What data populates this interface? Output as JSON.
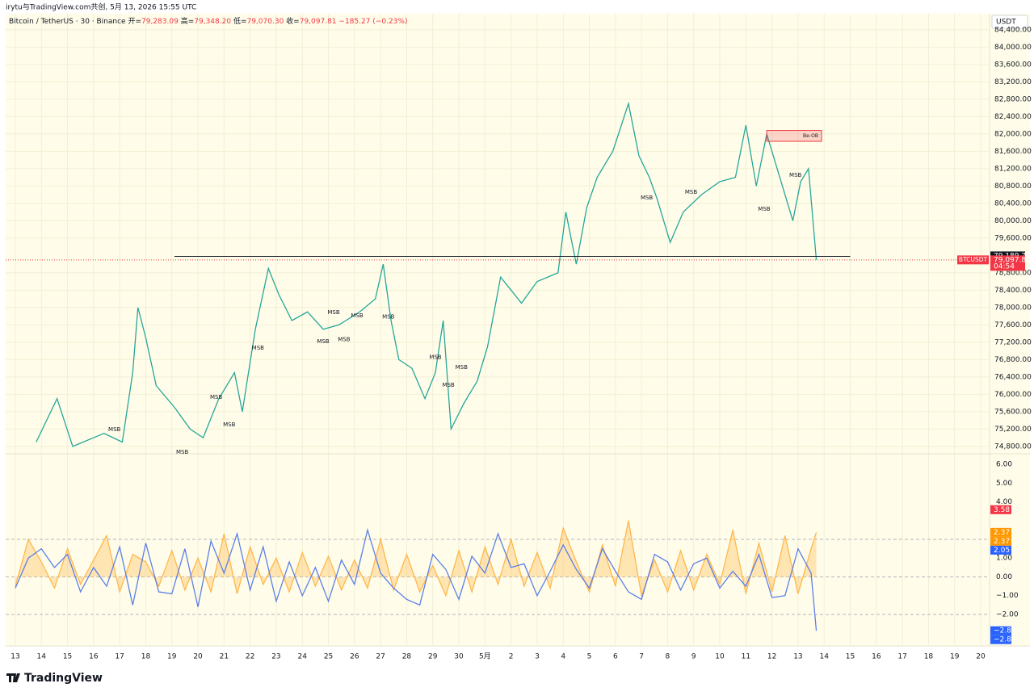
{
  "header": "irytu与TradingView.com共创, 5月 13, 2026 15:55 UTC",
  "legend": {
    "title": "Bitcoin / TetherUS · 30 · Binance",
    "ohlc": [
      {
        "key": "开=",
        "value": "79,283.09"
      },
      {
        "key": "高=",
        "value": "79,348.20"
      },
      {
        "key": "低=",
        "value": "79,070.30"
      },
      {
        "key": "收=",
        "value": "79,097.81"
      }
    ],
    "change": "−185.27 (−0.23%)"
  },
  "currency": "USDT",
  "footer": "TradingView",
  "chart_data": [
    {
      "type": "line",
      "color": "#26a69a",
      "x": [
        0.8,
        1.6,
        2.2,
        3.4,
        4.1,
        4.5,
        4.7,
        5.0,
        5.4,
        6.1,
        6.7,
        7.2,
        7.8,
        8.4,
        8.7,
        9.2,
        9.7,
        10.1,
        10.6,
        11.2,
        11.8,
        12.4,
        13.2,
        13.8,
        14.1,
        14.4,
        14.7,
        15.2,
        15.7,
        16.1,
        16.4,
        16.7,
        17.2,
        17.7,
        18.1,
        18.6,
        19.4,
        20.0,
        20.8,
        21.1,
        21.5,
        21.9,
        22.3,
        22.9,
        23.5,
        23.9,
        24.3,
        24.6,
        25.1,
        25.6,
        26.3,
        27.0,
        27.6,
        28.0,
        28.4,
        28.8,
        29.3,
        29.8,
        30.1,
        30.4,
        30.5,
        30.7
      ],
      "values": [
        74900,
        75900,
        74800,
        75100,
        74900,
        76500,
        78000,
        77300,
        76200,
        75700,
        75200,
        75000,
        75900,
        76500,
        75600,
        77500,
        78900,
        78300,
        77700,
        77900,
        77500,
        77600,
        77900,
        78200,
        79000,
        77700,
        76800,
        76600,
        75900,
        76500,
        77700,
        75200,
        75800,
        76300,
        77100,
        78700,
        78100,
        78600,
        78800,
        80200,
        79000,
        80300,
        81000,
        81600,
        82700,
        81500,
        81000,
        80500,
        79500,
        80200,
        80600,
        80900,
        81000,
        82200,
        80800,
        82000,
        81000,
        80000,
        80900,
        81200,
        80500,
        79100
      ],
      "xlim": [
        -0.37,
        37.34
      ],
      "xticks": [
        {
          "value": 0,
          "label": "13"
        },
        {
          "value": 1,
          "label": "14"
        },
        {
          "value": 2,
          "label": "15"
        },
        {
          "value": 3,
          "label": "16"
        },
        {
          "value": 4,
          "label": "17"
        },
        {
          "value": 5,
          "label": "18"
        },
        {
          "value": 6,
          "label": "19"
        },
        {
          "value": 7,
          "label": "20"
        },
        {
          "value": 8,
          "label": "21"
        },
        {
          "value": 9,
          "label": "22"
        },
        {
          "value": 10,
          "label": "23"
        },
        {
          "value": 11,
          "label": "24"
        },
        {
          "value": 12,
          "label": "25"
        },
        {
          "value": 13,
          "label": "26"
        },
        {
          "value": 14,
          "label": "27"
        },
        {
          "value": 15,
          "label": "28"
        },
        {
          "value": 16,
          "label": "29"
        },
        {
          "value": 17,
          "label": "30"
        },
        {
          "value": 18,
          "label": "5月"
        },
        {
          "value": 19,
          "label": "2"
        },
        {
          "value": 20,
          "label": "3"
        },
        {
          "value": 21,
          "label": "4"
        },
        {
          "value": 22,
          "label": "5"
        },
        {
          "value": 23,
          "label": "6"
        },
        {
          "value": 24,
          "label": "7"
        },
        {
          "value": 25,
          "label": "8"
        },
        {
          "value": 26,
          "label": "9"
        },
        {
          "value": 27,
          "label": "10"
        },
        {
          "value": 28,
          "label": "11"
        },
        {
          "value": 29,
          "label": "12"
        },
        {
          "value": 30,
          "label": "13"
        },
        {
          "value": 31,
          "label": "14"
        },
        {
          "value": 32,
          "label": "15"
        },
        {
          "value": 33,
          "label": "16"
        },
        {
          "value": 34,
          "label": "17"
        },
        {
          "value": 35,
          "label": "18"
        },
        {
          "value": 36,
          "label": "19"
        },
        {
          "value": 37,
          "label": "20"
        }
      ],
      "ylim": [
        74630,
        84770
      ],
      "yticks": [
        {
          "value": 74800,
          "label": "74,800.00"
        },
        {
          "value": 75200,
          "label": "75,200.00"
        },
        {
          "value": 75600,
          "label": "75,600.00"
        },
        {
          "value": 76000,
          "label": "76,000.00"
        },
        {
          "value": 76400,
          "label": "76,400.00"
        },
        {
          "value": 76800,
          "label": "76,800.00"
        },
        {
          "value": 77200,
          "label": "77,200.00"
        },
        {
          "value": 77600,
          "label": "77,600.00"
        },
        {
          "value": 78000,
          "label": "78,000.00"
        },
        {
          "value": 78400,
          "label": "78,400.00"
        },
        {
          "value": 78800,
          "label": "78,800.00"
        },
        {
          "value": 79600,
          "label": "79,600.00"
        },
        {
          "value": 80000,
          "label": "80,000.00"
        },
        {
          "value": 80400,
          "label": "80,400.00"
        },
        {
          "value": 80800,
          "label": "80,800.00"
        },
        {
          "value": 81200,
          "label": "81,200.00"
        },
        {
          "value": 81600,
          "label": "81,600.00"
        },
        {
          "value": 82000,
          "label": "82,000.00"
        },
        {
          "value": 82400,
          "label": "82,400.00"
        },
        {
          "value": 82800,
          "label": "82,800.00"
        },
        {
          "value": 83200,
          "label": "83,200.00"
        },
        {
          "value": 83600,
          "label": "83,600.00"
        },
        {
          "value": 84000,
          "label": "84,000.00"
        },
        {
          "value": 84400,
          "label": "84,400.00"
        }
      ],
      "grid": true,
      "level": {
        "value": 79180,
        "x": [
          6.1,
          32.0
        ],
        "color": "#131722"
      },
      "order_block": {
        "label": "Be-OB",
        "x": [
          28.8,
          30.9
        ],
        "y": [
          81830,
          82080
        ],
        "color": "#f23645"
      },
      "annotations": [
        {
          "text": "MSB",
          "x": 3.8,
          "y": 75190,
          "color": "#22ab94"
        },
        {
          "text": "MSB",
          "x": 6.4,
          "y": 74670,
          "color": "#f23645"
        },
        {
          "text": "MSB",
          "x": 7.7,
          "y": 75930,
          "color": "#22ab94"
        },
        {
          "text": "MSB",
          "x": 8.2,
          "y": 75300,
          "color": "#f23645"
        },
        {
          "text": "MSB",
          "x": 9.3,
          "y": 77070,
          "color": "#22ab94"
        },
        {
          "text": "MSB",
          "x": 11.8,
          "y": 77220,
          "color": "#f23645"
        },
        {
          "text": "MSB",
          "x": 12.2,
          "y": 77890,
          "color": "#22ab94"
        },
        {
          "text": "MSB",
          "x": 12.6,
          "y": 77260,
          "color": "#f23645"
        },
        {
          "text": "MSB",
          "x": 13.1,
          "y": 77810,
          "color": "#22ab94"
        },
        {
          "text": "MSB",
          "x": 14.3,
          "y": 77780,
          "color": "#f23645"
        },
        {
          "text": "MSB",
          "x": 16.1,
          "y": 76850,
          "color": "#22ab94"
        },
        {
          "text": "MSB",
          "x": 16.6,
          "y": 76210,
          "color": "#f23645"
        },
        {
          "text": "MSB",
          "x": 17.1,
          "y": 76620,
          "color": "#22ab94"
        },
        {
          "text": "MSB",
          "x": 24.2,
          "y": 80530,
          "color": "#f23645"
        },
        {
          "text": "MSB",
          "x": 25.9,
          "y": 80660,
          "color": "#22ab94"
        },
        {
          "text": "MSB",
          "x": 28.7,
          "y": 80270,
          "color": "#f23645"
        },
        {
          "text": "MSB",
          "x": 29.9,
          "y": 81050,
          "color": "#22ab94"
        }
      ],
      "price_tags": [
        {
          "label": "79,189.71",
          "value": 79189.71,
          "color": "#131722"
        },
        {
          "symbol": "BTCUSDT",
          "label": "79,097.81",
          "value": 79097.81,
          "countdown": "04:54",
          "color": "#f23645"
        }
      ]
    },
    {
      "type": "line",
      "x": [
        0,
        0.5,
        1,
        1.5,
        2,
        2.5,
        3,
        3.5,
        4,
        4.5,
        5,
        5.5,
        6,
        6.5,
        7,
        7.5,
        8,
        8.5,
        9,
        9.5,
        10,
        10.5,
        11,
        11.5,
        12,
        12.5,
        13,
        13.5,
        14,
        14.5,
        15,
        15.5,
        16,
        16.5,
        17,
        17.5,
        18,
        18.5,
        19,
        19.5,
        20,
        20.5,
        21,
        21.5,
        22,
        22.5,
        23,
        23.5,
        24,
        24.5,
        25,
        25.5,
        26,
        26.5,
        27,
        27.5,
        28,
        28.5,
        29,
        29.5,
        30,
        30.5,
        30.7
      ],
      "series": [
        {
          "color": "#ffb74d",
          "fill": true,
          "values": [
            -0.5,
            2.0,
            0.8,
            -0.6,
            1.5,
            -0.4,
            0.9,
            2.2,
            -0.8,
            1.2,
            0.8,
            -0.5,
            1.4,
            -0.7,
            1.0,
            -0.8,
            2.3,
            -0.9,
            1.6,
            -0.4,
            1.0,
            -0.8,
            1.3,
            -0.5,
            1.1,
            -0.7,
            0.9,
            -0.6,
            2.0,
            -0.7,
            1.2,
            -0.8,
            0.6,
            -1.0,
            1.4,
            -0.8,
            1.6,
            -0.4,
            2.0,
            -0.5,
            1.3,
            -0.6,
            2.6,
            0.8,
            -0.8,
            1.7,
            -0.5,
            3.0,
            -1.0,
            0.9,
            -0.8,
            1.4,
            -0.7,
            1.2,
            -0.4,
            2.5,
            -0.9,
            1.8,
            -0.8,
            2.2,
            -0.9,
            1.5,
            2.37
          ]
        },
        {
          "color": "#5b7fe8",
          "fill": false,
          "values": [
            -0.6,
            1.0,
            1.5,
            0.5,
            1.2,
            -0.8,
            0.5,
            -0.5,
            1.6,
            -1.5,
            1.8,
            -0.8,
            -0.9,
            1.5,
            -1.6,
            1.9,
            0.2,
            2.3,
            -0.7,
            1.6,
            -1.3,
            0.8,
            -1.0,
            0.5,
            -1.3,
            0.9,
            -0.4,
            2.5,
            0.2,
            -0.6,
            -1.2,
            -1.5,
            1.2,
            0.4,
            -1.2,
            1.1,
            0.2,
            2.3,
            0.5,
            0.7,
            -1.0,
            0.3,
            1.7,
            0.4,
            -0.6,
            1.5,
            0.3,
            -0.8,
            -1.2,
            1.2,
            0.8,
            -0.7,
            0.7,
            1.0,
            -0.6,
            0.3,
            -0.5,
            1.2,
            -1.1,
            -1.0,
            1.5,
            0.2,
            -2.87
          ]
        }
      ],
      "ylim": [
        -3.68,
        6.56
      ],
      "yticks": [
        {
          "value": -2,
          "label": "−2.00"
        },
        {
          "value": -1,
          "label": "−1.00"
        },
        {
          "value": 0,
          "label": "0.00"
        },
        {
          "value": 1,
          "label": "1.00"
        },
        {
          "value": 4,
          "label": "4.00"
        },
        {
          "value": 5,
          "label": "5.00"
        },
        {
          "value": 6,
          "label": "6.00"
        }
      ],
      "reference_lines": [
        2,
        0,
        -2
      ],
      "tags": [
        {
          "value": 3.58,
          "color": "#f23645"
        },
        {
          "value": 2.37,
          "color": "#ff9800"
        },
        {
          "value": 2.37,
          "color": "#ff9800"
        },
        {
          "value": 2.05,
          "color": "#2962ff"
        },
        {
          "value": -2.87,
          "label": "−2.87",
          "color": "#2962ff"
        },
        {
          "value": -2.87,
          "label": "−2.87",
          "color": "#2962ff"
        }
      ]
    }
  ]
}
